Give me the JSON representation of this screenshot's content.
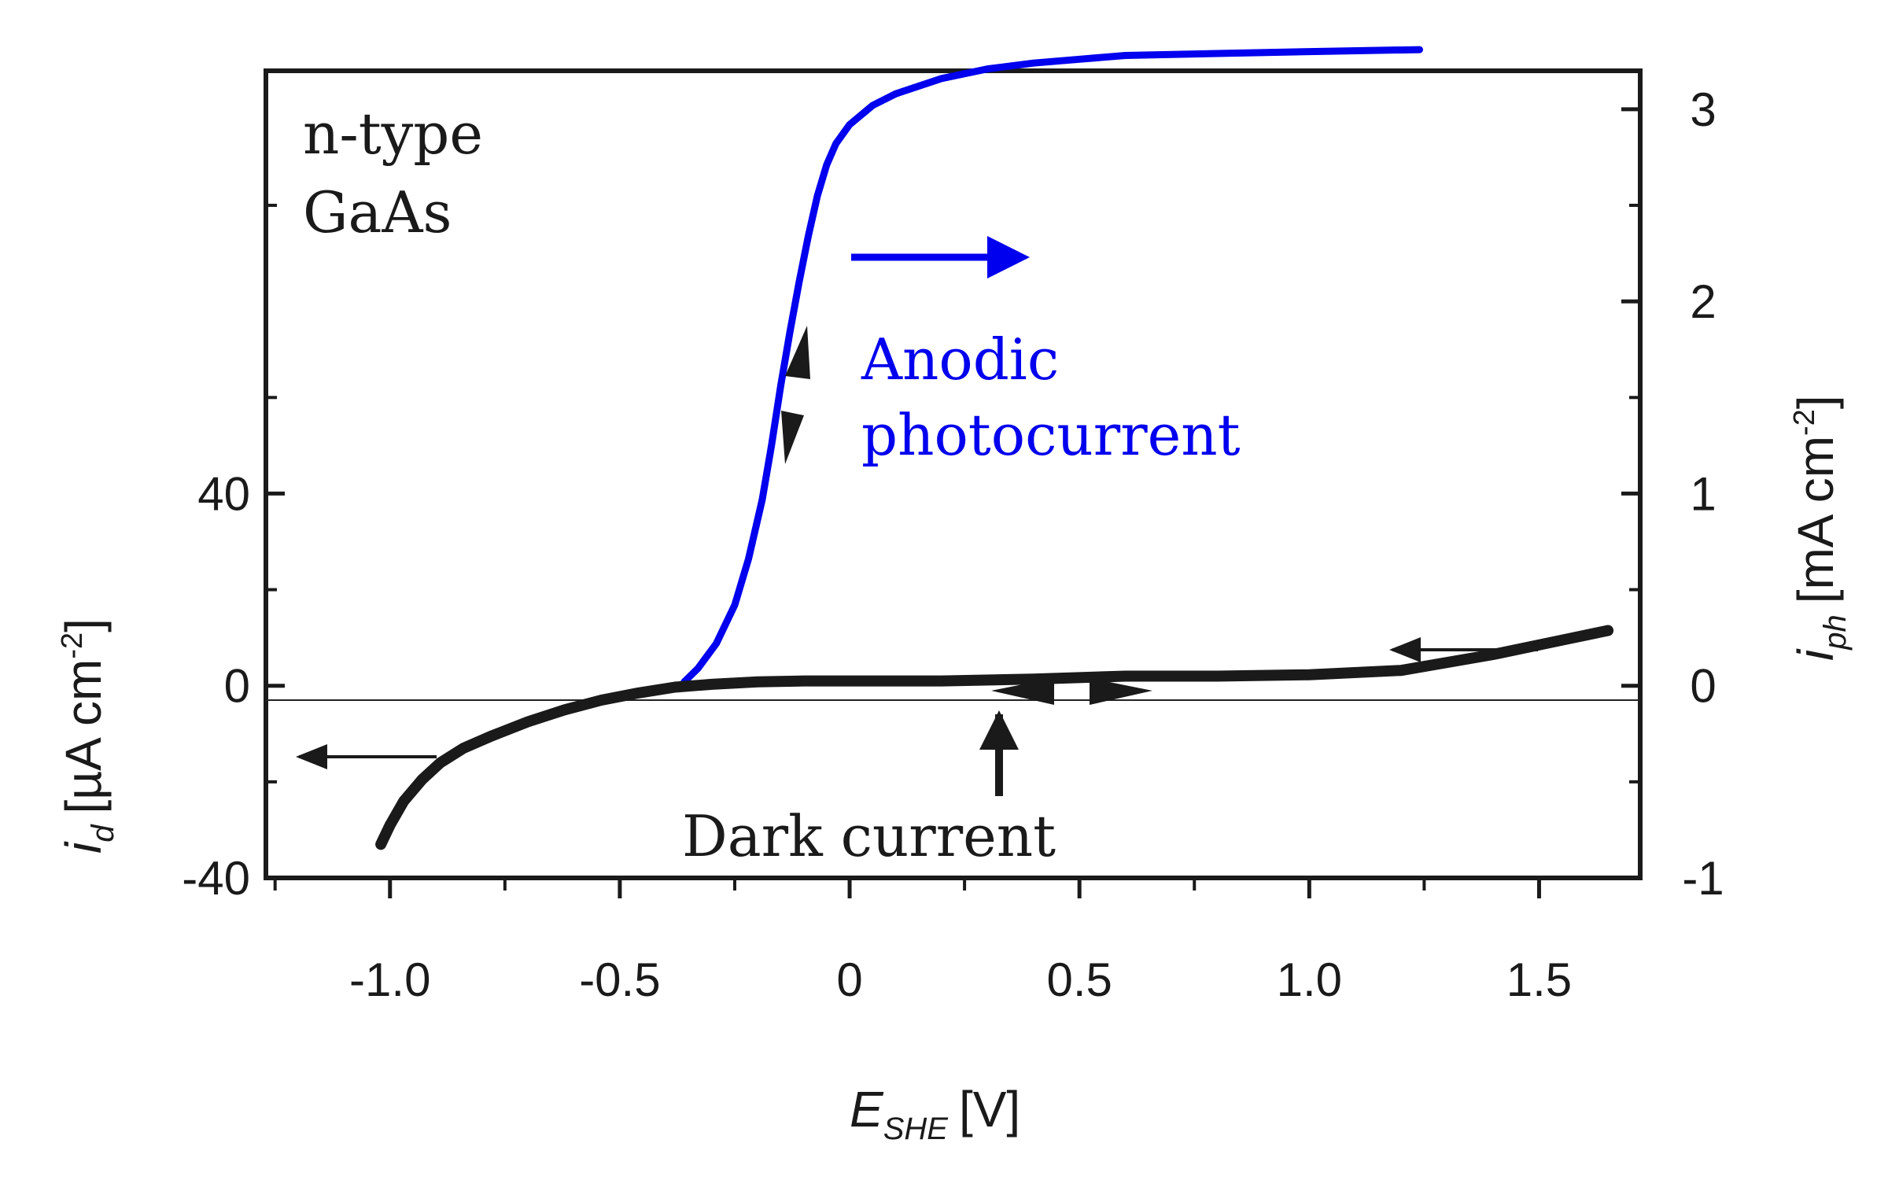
{
  "chart_data": {
    "type": "line",
    "xlabel": {
      "main": "E",
      "sub": "SHE",
      "unit": "[V]"
    },
    "ylabel_left": {
      "main": "i",
      "sub": "d",
      "unit": "[µA cm",
      "sup": "-2",
      "close": "]"
    },
    "ylabel_right": {
      "main": "i",
      "sub": "ph",
      "unit": "[mA cm",
      "sup": "-2",
      "close": "]"
    },
    "xlim": [
      -1.27,
      1.72
    ],
    "ylim_left": [
      -40,
      128
    ],
    "ylim_right": [
      -1,
      3.2
    ],
    "x_ticks": [
      -1.0,
      -0.5,
      0,
      0.5,
      1.0,
      1.5
    ],
    "x_tick_labels": [
      "-1.0",
      "-0.5",
      "0",
      "0.5",
      "1.0",
      "1.5"
    ],
    "y_left_ticks": [
      -40,
      0,
      40
    ],
    "y_left_tick_labels": [
      "-40",
      "0",
      "40"
    ],
    "y_right_ticks": [
      -1,
      0,
      1,
      2,
      3
    ],
    "y_right_tick_labels": [
      "-1",
      "0",
      "1",
      "2",
      "3"
    ],
    "annotations": {
      "sample": [
        "n-type",
        "GaAs"
      ],
      "photocurrent": [
        "Anodic",
        "photocurrent"
      ],
      "dark": "Dark current"
    },
    "colors": {
      "photocurrent": "#0000ee",
      "dark": "#1a1a1a"
    },
    "series": [
      {
        "axis": "right",
        "color": "#0000ee",
        "x": [
          -0.36,
          -0.33,
          -0.29,
          -0.25,
          -0.22,
          -0.19,
          -0.17,
          -0.15,
          -0.13,
          -0.11,
          -0.09,
          -0.07,
          -0.05,
          -0.03,
          0.0,
          0.05,
          0.1,
          0.2,
          0.3,
          0.4,
          0.5,
          0.6,
          0.8,
          1.0,
          1.24
        ],
        "y": [
          0.02,
          0.09,
          0.22,
          0.42,
          0.66,
          0.97,
          1.25,
          1.56,
          1.84,
          2.1,
          2.34,
          2.55,
          2.71,
          2.82,
          2.92,
          3.02,
          3.08,
          3.16,
          3.21,
          3.24,
          3.26,
          3.28,
          3.29,
          3.3,
          3.31
        ]
      },
      {
        "axis": "left",
        "color": "#1a1a1a",
        "x": [
          -1.02,
          -1.0,
          -0.97,
          -0.93,
          -0.89,
          -0.84,
          -0.78,
          -0.7,
          -0.62,
          -0.54,
          -0.46,
          -0.38,
          -0.3,
          -0.2,
          -0.1,
          0.0,
          0.2,
          0.4,
          0.6,
          0.8,
          1.0,
          1.2,
          1.4,
          1.55,
          1.65
        ],
        "y": [
          -33,
          -29,
          -24,
          -19.5,
          -16,
          -13,
          -10.5,
          -7.5,
          -5,
          -3,
          -1.5,
          -0.3,
          0.3,
          0.8,
          1,
          1,
          1,
          1.4,
          2,
          2,
          2.3,
          3.2,
          6.5,
          9.5,
          11.5
        ]
      }
    ]
  }
}
